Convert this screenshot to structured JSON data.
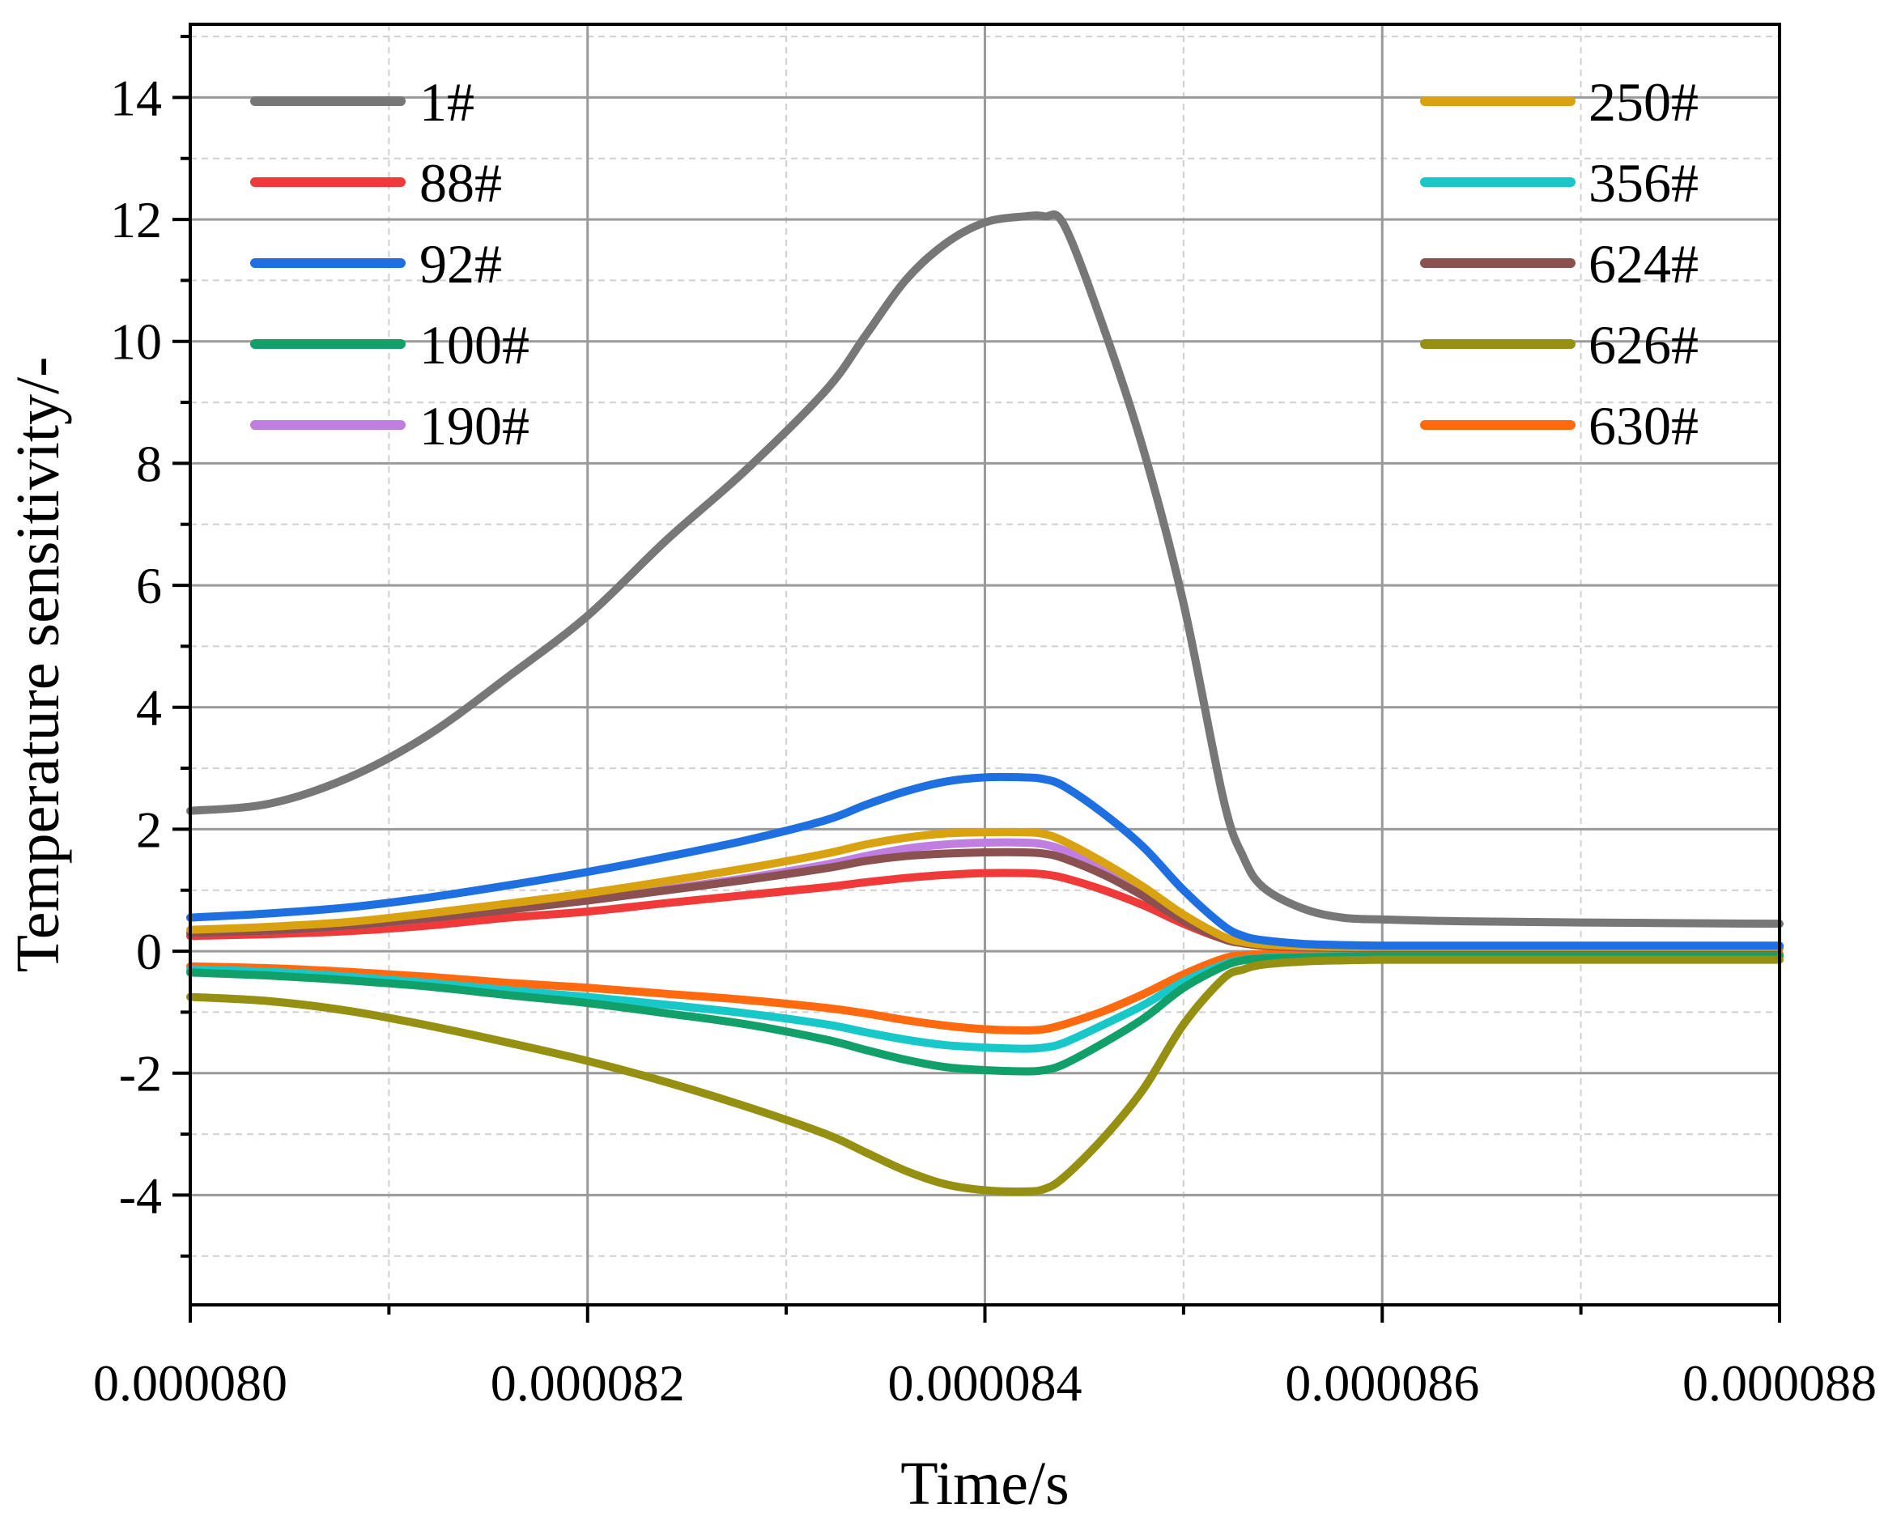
{
  "chart_data": {
    "type": "line",
    "title": "",
    "xlabel": "Time/s",
    "ylabel": "Temperature sensitivity/-",
    "xlim": [
      8e-05,
      8.8e-05
    ],
    "ylim": [
      -5.8,
      15.2
    ],
    "x_ticks": [
      8e-05,
      8.2e-05,
      8.4e-05,
      8.6e-05,
      8.8e-05
    ],
    "x_tick_labels": [
      "0.000080",
      "0.000082",
      "0.000084",
      "0.000086",
      "0.000088"
    ],
    "y_ticks": [
      -4,
      -2,
      0,
      2,
      4,
      6,
      8,
      10,
      12,
      14
    ],
    "y_tick_labels": [
      "-4",
      "-2",
      "0",
      "2",
      "4",
      "6",
      "8",
      "10",
      "12",
      "14"
    ],
    "grid": true,
    "legend_left": [
      "1#",
      "88#",
      "92#",
      "100#",
      "190#"
    ],
    "legend_right": [
      "250#",
      "356#",
      "624#",
      "626#",
      "630#"
    ],
    "x": [
      8e-05,
      8.04e-05,
      8.08e-05,
      8.12e-05,
      8.16e-05,
      8.2e-05,
      8.24e-05,
      8.28e-05,
      8.32e-05,
      8.34e-05,
      8.36e-05,
      8.38e-05,
      8.4e-05,
      8.42e-05,
      8.43e-05,
      8.44e-05,
      8.46e-05,
      8.48e-05,
      8.5e-05,
      8.52e-05,
      8.53e-05,
      8.54e-05,
      8.56e-05,
      8.58e-05,
      8.6e-05,
      8.64e-05,
      8.7e-05,
      8.8e-05
    ],
    "series": [
      {
        "name": "1#",
        "color": "#777777",
        "values": [
          2.3,
          2.42,
          2.85,
          3.55,
          4.5,
          5.5,
          6.75,
          7.9,
          9.2,
          10.1,
          11.0,
          11.6,
          11.95,
          12.05,
          12.05,
          11.9,
          10.2,
          8.2,
          5.7,
          2.5,
          1.55,
          1.05,
          0.7,
          0.55,
          0.52,
          0.49,
          0.47,
          0.45
        ]
      },
      {
        "name": "88#",
        "color": "#f03a3a",
        "values": [
          0.25,
          0.28,
          0.33,
          0.42,
          0.55,
          0.65,
          0.79,
          0.92,
          1.05,
          1.13,
          1.2,
          1.25,
          1.28,
          1.28,
          1.26,
          1.2,
          1.0,
          0.75,
          0.45,
          0.2,
          0.13,
          0.09,
          0.06,
          0.05,
          0.05,
          0.05,
          0.05,
          0.05
        ]
      },
      {
        "name": "92#",
        "color": "#1e6fe0",
        "values": [
          0.55,
          0.62,
          0.72,
          0.88,
          1.08,
          1.3,
          1.55,
          1.82,
          2.15,
          2.4,
          2.62,
          2.78,
          2.85,
          2.85,
          2.82,
          2.7,
          2.25,
          1.7,
          1.0,
          0.42,
          0.25,
          0.18,
          0.12,
          0.1,
          0.09,
          0.09,
          0.09,
          0.09
        ]
      },
      {
        "name": "100#",
        "color": "#12a06a",
        "values": [
          -0.35,
          -0.4,
          -0.48,
          -0.58,
          -0.72,
          -0.85,
          -1.02,
          -1.2,
          -1.45,
          -1.62,
          -1.78,
          -1.9,
          -1.95,
          -1.97,
          -1.95,
          -1.85,
          -1.5,
          -1.1,
          -0.6,
          -0.25,
          -0.15,
          -0.12,
          -0.1,
          -0.09,
          -0.08,
          -0.08,
          -0.08,
          -0.08
        ]
      },
      {
        "name": "190#",
        "color": "#c07ee0",
        "values": [
          0.3,
          0.34,
          0.42,
          0.54,
          0.7,
          0.85,
          1.02,
          1.2,
          1.42,
          1.56,
          1.68,
          1.75,
          1.78,
          1.78,
          1.75,
          1.65,
          1.35,
          0.98,
          0.55,
          0.22,
          0.14,
          0.1,
          0.07,
          0.06,
          0.06,
          0.06,
          0.06,
          0.06
        ]
      },
      {
        "name": "250#",
        "color": "#d9a210",
        "values": [
          0.35,
          0.4,
          0.48,
          0.62,
          0.78,
          0.95,
          1.15,
          1.36,
          1.6,
          1.75,
          1.86,
          1.93,
          1.95,
          1.95,
          1.92,
          1.8,
          1.45,
          1.05,
          0.6,
          0.24,
          0.15,
          0.11,
          0.08,
          0.07,
          0.07,
          0.07,
          0.07,
          0.07
        ]
      },
      {
        "name": "356#",
        "color": "#18c8c8",
        "values": [
          -0.3,
          -0.34,
          -0.42,
          -0.52,
          -0.64,
          -0.75,
          -0.88,
          -1.02,
          -1.2,
          -1.33,
          -1.45,
          -1.54,
          -1.58,
          -1.6,
          -1.58,
          -1.5,
          -1.2,
          -0.88,
          -0.5,
          -0.22,
          -0.14,
          -0.11,
          -0.09,
          -0.08,
          -0.08,
          -0.08,
          -0.08,
          -0.08
        ]
      },
      {
        "name": "624#",
        "color": "#8b5050",
        "values": [
          0.3,
          0.34,
          0.42,
          0.54,
          0.68,
          0.83,
          1.0,
          1.17,
          1.36,
          1.48,
          1.56,
          1.6,
          1.62,
          1.62,
          1.6,
          1.52,
          1.25,
          0.9,
          0.5,
          0.2,
          0.13,
          0.09,
          0.07,
          0.06,
          0.06,
          0.06,
          0.06,
          0.06
        ]
      },
      {
        "name": "626#",
        "color": "#969012",
        "values": [
          -0.75,
          -0.82,
          -0.98,
          -1.22,
          -1.5,
          -1.8,
          -2.15,
          -2.55,
          -3.0,
          -3.3,
          -3.6,
          -3.82,
          -3.92,
          -3.94,
          -3.9,
          -3.7,
          -3.05,
          -2.25,
          -1.2,
          -0.45,
          -0.3,
          -0.22,
          -0.17,
          -0.15,
          -0.14,
          -0.14,
          -0.14,
          -0.14
        ]
      },
      {
        "name": "630#",
        "color": "#ff6a10",
        "values": [
          -0.25,
          -0.28,
          -0.34,
          -0.42,
          -0.52,
          -0.6,
          -0.7,
          -0.8,
          -0.93,
          -1.02,
          -1.13,
          -1.22,
          -1.28,
          -1.3,
          -1.28,
          -1.2,
          -0.98,
          -0.7,
          -0.38,
          -0.12,
          -0.07,
          -0.05,
          -0.05,
          -0.05,
          -0.05,
          -0.05,
          -0.05,
          -0.05
        ]
      }
    ]
  }
}
